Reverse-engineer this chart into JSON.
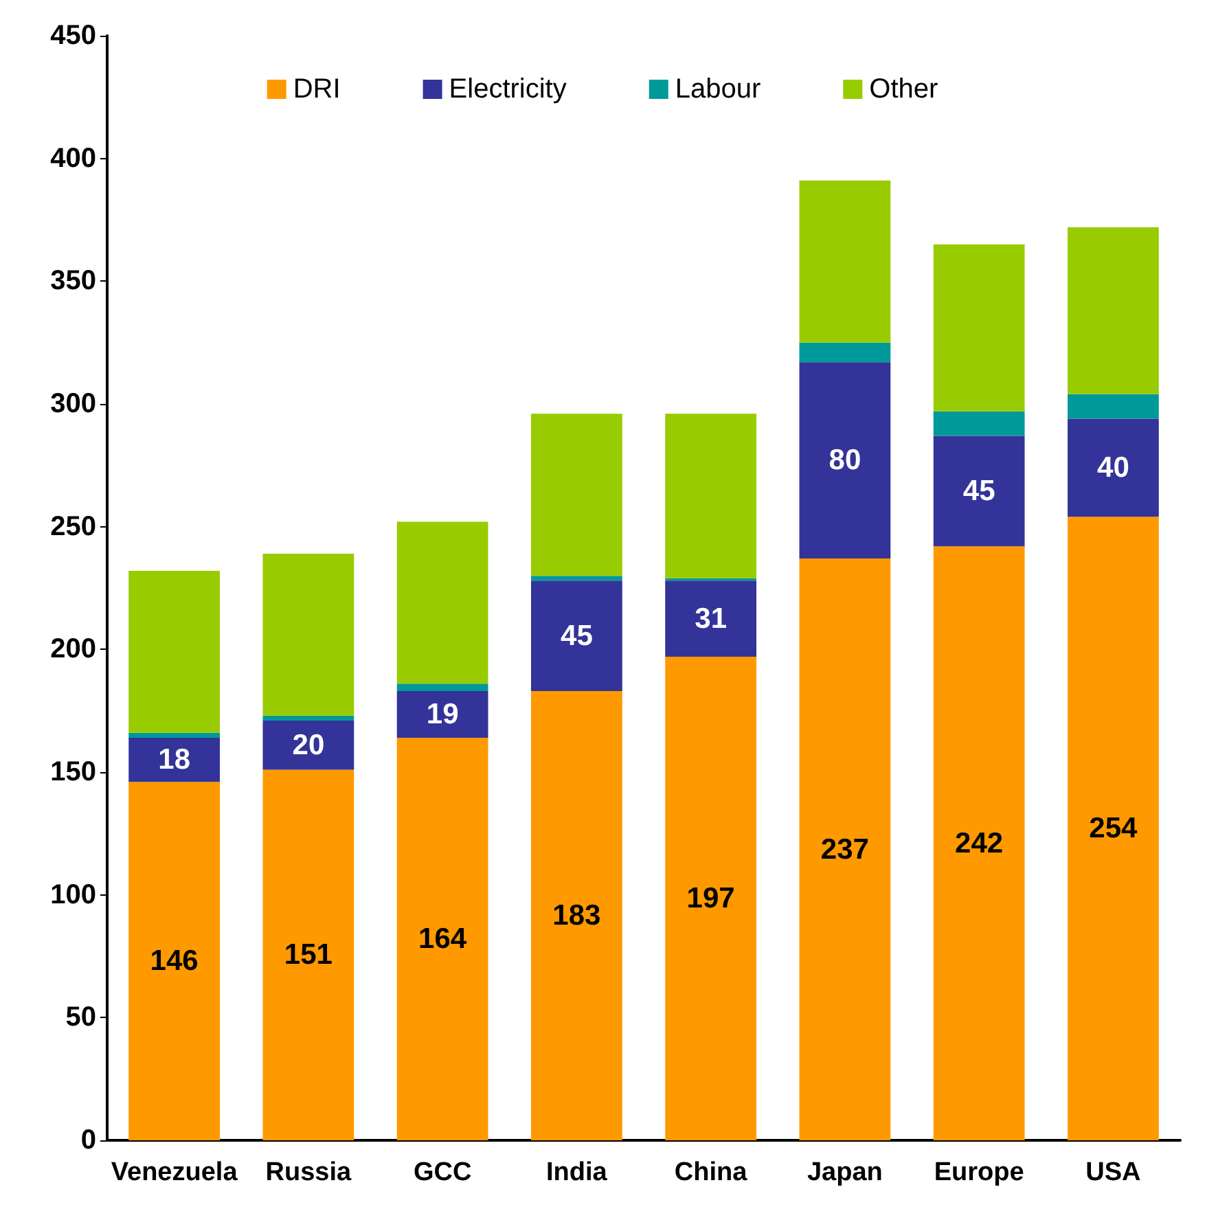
{
  "chart_data": {
    "type": "bar",
    "stacked": true,
    "categories": [
      "Venezuela",
      "Russia",
      "GCC",
      "India",
      "China",
      "Japan",
      "Europe",
      "USA"
    ],
    "series": [
      {
        "name": "DRI",
        "color": "#ff9900",
        "values": [
          146,
          151,
          164,
          183,
          197,
          237,
          242,
          254
        ],
        "value_labels": [
          "146",
          "151",
          "164",
          "183",
          "197",
          "237",
          "242",
          "254"
        ]
      },
      {
        "name": "Electricity",
        "color": "#333399",
        "values": [
          18,
          20,
          19,
          45,
          31,
          80,
          45,
          40
        ],
        "value_labels": [
          "18",
          "20",
          "19",
          "45",
          "31",
          "80",
          "45",
          "40"
        ]
      },
      {
        "name": "Labour",
        "color": "#009999",
        "values": [
          2,
          2,
          3,
          2,
          1,
          8,
          10,
          10
        ]
      },
      {
        "name": "Other",
        "color": "#99cc00",
        "values": [
          66,
          66,
          66,
          66,
          67,
          66,
          68,
          68
        ]
      }
    ],
    "ylim": [
      0,
      450
    ],
    "yticks": [
      0,
      50,
      100,
      150,
      200,
      250,
      300,
      350,
      400,
      450
    ],
    "legend": "top",
    "grid": false
  }
}
